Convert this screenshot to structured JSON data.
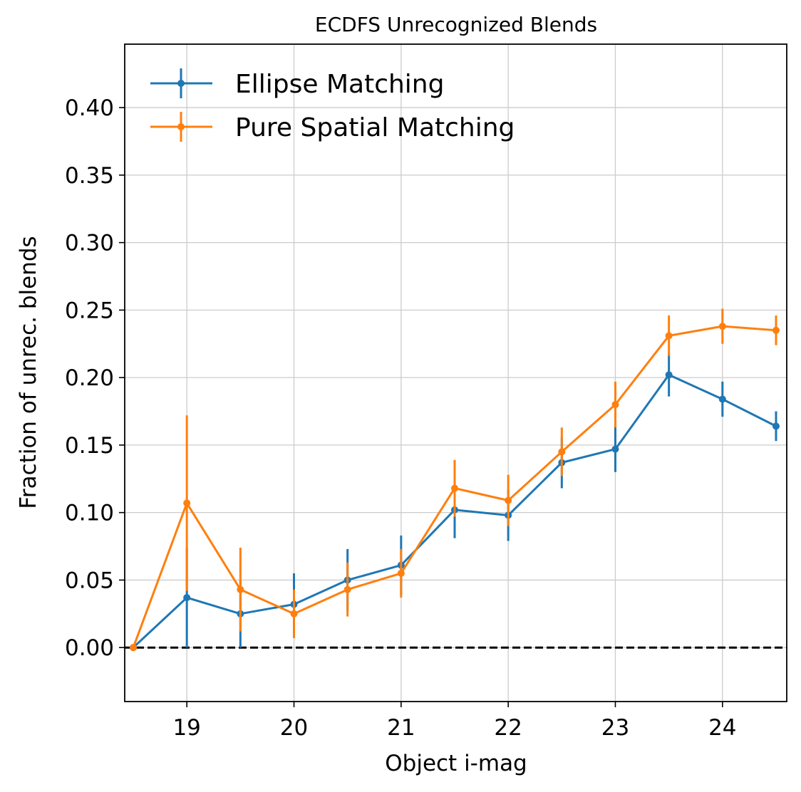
{
  "chart_data": {
    "type": "line",
    "title": "ECDFS Unrecognized Blends",
    "xlabel": "Object i-mag",
    "ylabel": "Fraction of unrec. blends",
    "xlim": [
      18.42,
      24.6
    ],
    "ylim": [
      -0.04,
      0.447
    ],
    "x_ticks": [
      19,
      20,
      21,
      22,
      23,
      24
    ],
    "y_ticks": [
      0.0,
      0.05,
      0.1,
      0.15,
      0.2,
      0.25,
      0.3,
      0.35,
      0.4
    ],
    "x_tick_labels": [
      "19",
      "20",
      "21",
      "22",
      "23",
      "24"
    ],
    "y_tick_labels": [
      "0.00",
      "0.05",
      "0.10",
      "0.15",
      "0.20",
      "0.25",
      "0.30",
      "0.35",
      "0.40"
    ],
    "grid": true,
    "legend_position": "top-left",
    "reference_line": {
      "y": 0.0,
      "style": "dashed",
      "color": "#000000"
    },
    "x": [
      18.5,
      19.0,
      19.5,
      20.0,
      20.5,
      21.0,
      21.5,
      22.0,
      22.5,
      23.0,
      23.5,
      24.0,
      24.5
    ],
    "series": [
      {
        "name": "Ellipse Matching",
        "color": "#1f77b4",
        "values": [
          0.0,
          0.037,
          0.025,
          0.032,
          0.05,
          0.061,
          0.102,
          0.098,
          0.137,
          0.147,
          0.202,
          0.184,
          0.164
        ],
        "errors": [
          0.0,
          0.037,
          0.025,
          0.023,
          0.023,
          0.022,
          0.021,
          0.019,
          0.019,
          0.017,
          0.016,
          0.013,
          0.011
        ]
      },
      {
        "name": "Pure Spatial Matching",
        "color": "#ff7f0e",
        "values": [
          0.0,
          0.107,
          0.043,
          0.025,
          0.043,
          0.055,
          0.118,
          0.109,
          0.145,
          0.18,
          0.231,
          0.238,
          0.235
        ],
        "errors": [
          0.0,
          0.065,
          0.031,
          0.018,
          0.02,
          0.018,
          0.021,
          0.019,
          0.018,
          0.017,
          0.015,
          0.013,
          0.011
        ]
      }
    ]
  }
}
